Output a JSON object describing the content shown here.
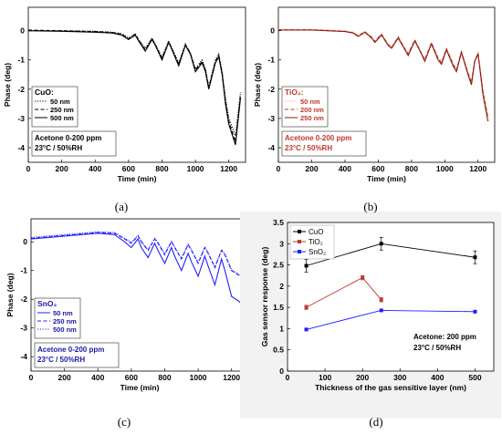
{
  "chart_data": [
    {
      "id": "a",
      "type": "line",
      "xlabel": "Time (min)",
      "ylabel": "Phase (deg)",
      "xlim": [
        0,
        1300
      ],
      "ylim": [
        -4.5,
        0.8
      ],
      "xticks": [
        0,
        200,
        400,
        600,
        800,
        1000,
        1200
      ],
      "yticks": [
        0,
        -1,
        -2,
        -3,
        -4
      ],
      "grid": false,
      "legend_title": "CuO:",
      "legend_placement": "bottom-left",
      "legend_color": "#000000",
      "legend_styles": [
        "dotted",
        "dashed",
        "solid"
      ],
      "annotation": [
        "Acetone 0-200 ppm",
        "23°C / 50%RH"
      ],
      "annotation_color": "#000000",
      "caption": "(a)",
      "series": [
        {
          "name": "50 nm",
          "color": "#000000",
          "x": [
            0,
            200,
            400,
            500,
            560,
            600,
            640,
            660,
            700,
            740,
            760,
            800,
            840,
            860,
            900,
            940,
            970,
            1000,
            1040,
            1060,
            1080,
            1120,
            1140,
            1160,
            1180,
            1200,
            1240,
            1270
          ],
          "y": [
            0.0,
            0.0,
            -0.02,
            -0.05,
            -0.1,
            -0.25,
            -0.1,
            -0.3,
            -0.6,
            -0.25,
            -0.45,
            -0.9,
            -0.35,
            -0.6,
            -1.1,
            -0.45,
            -0.75,
            -1.3,
            -1.0,
            -1.3,
            -1.9,
            -1.0,
            -0.8,
            -1.4,
            -2.3,
            -3.0,
            -3.6,
            -2.1
          ]
        },
        {
          "name": "250 nm",
          "color": "#000000",
          "x": [
            0,
            200,
            400,
            500,
            560,
            600,
            640,
            660,
            700,
            740,
            760,
            800,
            840,
            860,
            900,
            940,
            970,
            1000,
            1040,
            1060,
            1080,
            1120,
            1140,
            1160,
            1180,
            1200,
            1240,
            1270
          ],
          "y": [
            0.02,
            0.0,
            -0.03,
            -0.06,
            -0.12,
            -0.28,
            -0.12,
            -0.32,
            -0.65,
            -0.28,
            -0.48,
            -0.95,
            -0.38,
            -0.62,
            -1.15,
            -0.48,
            -0.78,
            -1.35,
            -1.05,
            -1.35,
            -1.95,
            -1.05,
            -0.85,
            -1.45,
            -2.4,
            -3.1,
            -3.8,
            -2.2
          ]
        },
        {
          "name": "500 nm",
          "color": "#000000",
          "x": [
            0,
            200,
            400,
            500,
            560,
            600,
            640,
            660,
            700,
            740,
            760,
            800,
            840,
            860,
            900,
            940,
            970,
            1000,
            1040,
            1060,
            1080,
            1120,
            1140,
            1160,
            1180,
            1200,
            1240,
            1270
          ],
          "y": [
            0.0,
            -0.02,
            -0.05,
            -0.08,
            -0.15,
            -0.3,
            -0.15,
            -0.35,
            -0.7,
            -0.3,
            -0.5,
            -1.0,
            -0.4,
            -0.65,
            -1.2,
            -0.5,
            -0.8,
            -1.4,
            -1.1,
            -1.4,
            -2.0,
            -1.1,
            -0.9,
            -1.5,
            -2.5,
            -3.2,
            -3.9,
            -2.3
          ]
        }
      ]
    },
    {
      "id": "b",
      "type": "line",
      "xlabel": "Time (min)",
      "ylabel": "Phase (deg)",
      "xlim": [
        0,
        1300
      ],
      "ylim": [
        -4.5,
        0.8
      ],
      "xticks": [
        0,
        200,
        400,
        600,
        800,
        1000,
        1200
      ],
      "yticks": [
        0,
        -1,
        -2,
        -3,
        -4
      ],
      "grid": false,
      "legend_title": "TiO₂:",
      "legend_placement": "bottom-left",
      "legend_color": "#c0392b",
      "legend_styles": [
        "dotted",
        "dashed",
        "solid"
      ],
      "annotation": [
        "Acetone 0-200 ppm",
        "23°C / 50%RH"
      ],
      "annotation_color": "#c0392b",
      "caption": "(b)",
      "series": [
        {
          "name": "50 nm",
          "color": "#e8a090",
          "x": [
            0,
            200,
            400,
            450,
            480,
            520,
            560,
            580,
            620,
            660,
            680,
            720,
            760,
            780,
            820,
            860,
            880,
            920,
            960,
            980,
            1010,
            1050,
            1070,
            1100,
            1140,
            1160,
            1180,
            1200,
            1230,
            1260
          ],
          "y": [
            0.05,
            0.05,
            0.0,
            -0.05,
            -0.15,
            -0.02,
            -0.2,
            -0.35,
            -0.1,
            -0.45,
            -0.55,
            -0.2,
            -0.6,
            -0.75,
            -0.3,
            -0.75,
            -0.95,
            -0.4,
            -0.9,
            -1.05,
            -0.6,
            -1.1,
            -1.3,
            -0.7,
            -1.4,
            -1.7,
            -1.0,
            -0.75,
            -2.0,
            -2.9
          ]
        },
        {
          "name": "200 nm",
          "color": "#c0392b",
          "x": [
            0,
            200,
            400,
            450,
            480,
            520,
            560,
            580,
            620,
            660,
            680,
            720,
            760,
            780,
            820,
            860,
            880,
            920,
            960,
            980,
            1010,
            1050,
            1070,
            1100,
            1140,
            1160,
            1180,
            1200,
            1230,
            1260
          ],
          "y": [
            0.03,
            0.03,
            -0.02,
            -0.07,
            -0.18,
            -0.04,
            -0.22,
            -0.38,
            -0.12,
            -0.48,
            -0.58,
            -0.22,
            -0.62,
            -0.8,
            -0.32,
            -0.78,
            -1.0,
            -0.42,
            -0.95,
            -1.1,
            -0.62,
            -1.15,
            -1.35,
            -0.72,
            -1.45,
            -1.78,
            -1.02,
            -0.78,
            -2.1,
            -3.0
          ]
        },
        {
          "name": "250 nm",
          "color": "#8e1b10",
          "x": [
            0,
            200,
            400,
            450,
            480,
            520,
            560,
            580,
            620,
            660,
            680,
            720,
            760,
            780,
            820,
            860,
            880,
            920,
            960,
            980,
            1010,
            1050,
            1070,
            1100,
            1140,
            1160,
            1180,
            1200,
            1230,
            1260
          ],
          "y": [
            0.02,
            0.02,
            -0.03,
            -0.08,
            -0.2,
            -0.05,
            -0.25,
            -0.4,
            -0.15,
            -0.5,
            -0.6,
            -0.25,
            -0.65,
            -0.85,
            -0.35,
            -0.8,
            -1.05,
            -0.45,
            -1.0,
            -1.15,
            -0.65,
            -1.2,
            -1.4,
            -0.75,
            -1.5,
            -1.85,
            -1.05,
            -0.8,
            -2.2,
            -3.1
          ]
        }
      ]
    },
    {
      "id": "c",
      "type": "line",
      "xlabel": "Time (min)",
      "ylabel": "Phase (deg)",
      "xlim": [
        0,
        1300
      ],
      "ylim": [
        -4.5,
        0.8
      ],
      "xticks": [
        0,
        200,
        400,
        600,
        800,
        1000,
        1200
      ],
      "yticks": [
        0,
        -1,
        -2,
        -3,
        -4
      ],
      "grid": false,
      "legend_title": "SnO₂",
      "legend_placement": "bottom-left",
      "legend_color": "#1a1aa6",
      "legend_styles": [
        "solid",
        "dashed",
        "dotted"
      ],
      "annotation": [
        "Acetone 0-200 ppm",
        "23°C / 50%RH"
      ],
      "annotation_color": "#1a1aa6",
      "caption": "(c)",
      "series": [
        {
          "name": "50 nm",
          "color": "#2020ff",
          "x": [
            0,
            200,
            400,
            500,
            560,
            600,
            640,
            660,
            700,
            740,
            760,
            800,
            840,
            860,
            900,
            940,
            960,
            1000,
            1040,
            1060,
            1100,
            1140,
            1160,
            1200,
            1240,
            1260
          ],
          "y": [
            0.1,
            0.2,
            0.3,
            0.25,
            0.0,
            -0.2,
            0.1,
            -0.2,
            -0.55,
            -0.05,
            -0.3,
            -0.75,
            -0.2,
            -0.5,
            -1.0,
            -0.4,
            -0.7,
            -1.2,
            -0.5,
            -0.85,
            -1.5,
            -0.6,
            -1.0,
            -1.9,
            -2.05,
            -2.15
          ]
        },
        {
          "name": "250 nm",
          "color": "#2020ff",
          "x": [
            0,
            200,
            400,
            500,
            560,
            600,
            640,
            660,
            700,
            740,
            760,
            800,
            840,
            860,
            900,
            940,
            960,
            1000,
            1040,
            1060,
            1100,
            1140,
            1160,
            1200,
            1240,
            1260
          ],
          "y": [
            0.12,
            0.22,
            0.32,
            0.3,
            0.1,
            -0.05,
            0.2,
            0.0,
            -0.3,
            0.1,
            -0.05,
            -0.45,
            0.0,
            -0.2,
            -0.6,
            -0.1,
            -0.3,
            -0.75,
            -0.2,
            -0.4,
            -0.9,
            -0.3,
            -0.45,
            -1.0,
            -1.15,
            -1.25
          ]
        },
        {
          "name": "500 nm",
          "color": "#2020ff",
          "x": [
            0,
            200,
            400,
            500,
            560,
            600,
            640,
            660,
            700,
            740,
            760,
            800,
            840,
            860,
            900,
            940,
            960,
            1000,
            1040,
            1060,
            1100,
            1140,
            1160,
            1200,
            1240,
            1260
          ],
          "y": [
            0.15,
            0.25,
            0.35,
            0.32,
            0.12,
            -0.02,
            0.22,
            0.02,
            -0.28,
            0.12,
            -0.02,
            -0.42,
            0.02,
            -0.18,
            -0.58,
            -0.08,
            -0.28,
            -0.72,
            -0.18,
            -0.38,
            -0.88,
            -0.28,
            -0.42,
            -0.98,
            -1.12,
            -1.22
          ]
        }
      ]
    },
    {
      "id": "d",
      "type": "line",
      "xlabel": "Thickness of the gas sensitive layer (nm)",
      "ylabel": "Gas sensor response (deg)",
      "xlim": [
        0,
        550
      ],
      "ylim": [
        0,
        3.5
      ],
      "xticks": [
        0,
        100,
        200,
        300,
        400,
        500
      ],
      "yticks": [
        0,
        0.5,
        1,
        1.5,
        2,
        2.5,
        3,
        3.5
      ],
      "grid": false,
      "legend_placement": "top-left",
      "annotation": [
        "Acetone: 200 ppm",
        "23°C / 50%RH"
      ],
      "annotation_color": "#000000",
      "caption": "(d)",
      "series": [
        {
          "name": "CuO",
          "color": "#000000",
          "x": [
            50,
            250,
            500
          ],
          "y": [
            2.48,
            3.0,
            2.68
          ],
          "err": [
            0.15,
            0.15,
            0.15
          ]
        },
        {
          "name": "TiO₂",
          "color": "#c0392b",
          "x": [
            50,
            200,
            250
          ],
          "y": [
            1.5,
            2.2,
            1.68
          ],
          "err": [
            0.05,
            0.05,
            0.05
          ]
        },
        {
          "name": "SnO₂",
          "color": "#2020ff",
          "x": [
            50,
            250,
            500
          ],
          "y": [
            0.98,
            1.43,
            1.4
          ],
          "err": [
            0.03,
            0.03,
            0.03
          ]
        }
      ]
    }
  ]
}
